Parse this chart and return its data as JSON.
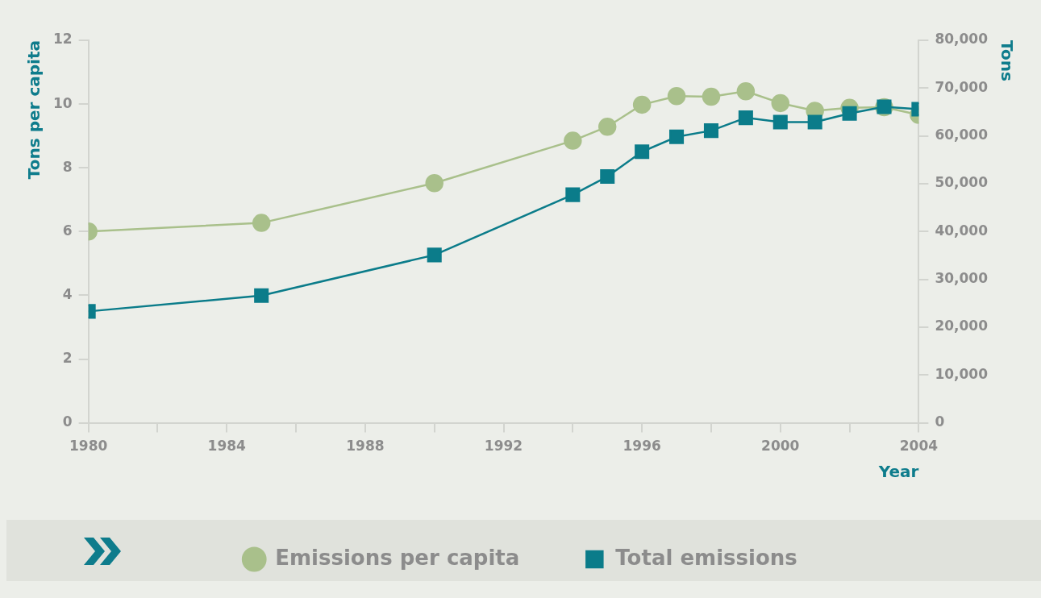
{
  "chart_data": {
    "type": "line",
    "xlabel": "Year",
    "ylabel": "Tons per capita",
    "y2label": "Tons",
    "x": [
      1980,
      1985,
      1990,
      1994,
      1995,
      1996,
      1997,
      1998,
      1999,
      2000,
      2001,
      2002,
      2003,
      2004
    ],
    "xlim": [
      1980,
      2004
    ],
    "xticks": [
      1980,
      {
        "value": 1982,
        "label": null
      },
      1984,
      {
        "value": 1986,
        "label": null
      },
      1988,
      {
        "value": 1990,
        "label": null
      },
      1992,
      {
        "value": 1994,
        "label": null
      },
      1996,
      {
        "value": 1998,
        "label": null
      },
      2000,
      {
        "value": 2002,
        "label": null
      },
      2004
    ],
    "ylim": [
      0,
      12
    ],
    "yticks": [
      0,
      2,
      4,
      6,
      8,
      10,
      12
    ],
    "y2lim": [
      0,
      80000
    ],
    "y2ticks": [
      0,
      {
        "value": 10000,
        "label": "10,000"
      },
      {
        "value": 20000,
        "label": "20,000"
      },
      {
        "value": 30000,
        "label": "30,000"
      },
      {
        "value": 40000,
        "label": "40,000"
      },
      {
        "value": 50000,
        "label": "50,000"
      },
      {
        "value": 60000,
        "label": "60,000"
      },
      {
        "value": 70000,
        "label": "70,000"
      },
      {
        "value": 80000,
        "label": "80,000"
      }
    ],
    "grid": false,
    "legend": "bottom",
    "line_style": "solid",
    "series": [
      {
        "name": "Emissions per capita",
        "color": "#a9c08b",
        "marker": "circle",
        "values": [
          6.0,
          6.27,
          7.52,
          8.85,
          9.29,
          9.98,
          10.25,
          10.23,
          10.4,
          10.03,
          9.79,
          9.88,
          9.9,
          9.66
        ]
      },
      {
        "name": "Total emissions",
        "color": "#0b7c8a",
        "marker": "square",
        "axis": "y2",
        "values": [
          23300,
          26600,
          35100,
          47700,
          51500,
          56700,
          59800,
          61100,
          63800,
          62900,
          62900,
          64700,
          66100,
          65600
        ]
      }
    ]
  }
}
